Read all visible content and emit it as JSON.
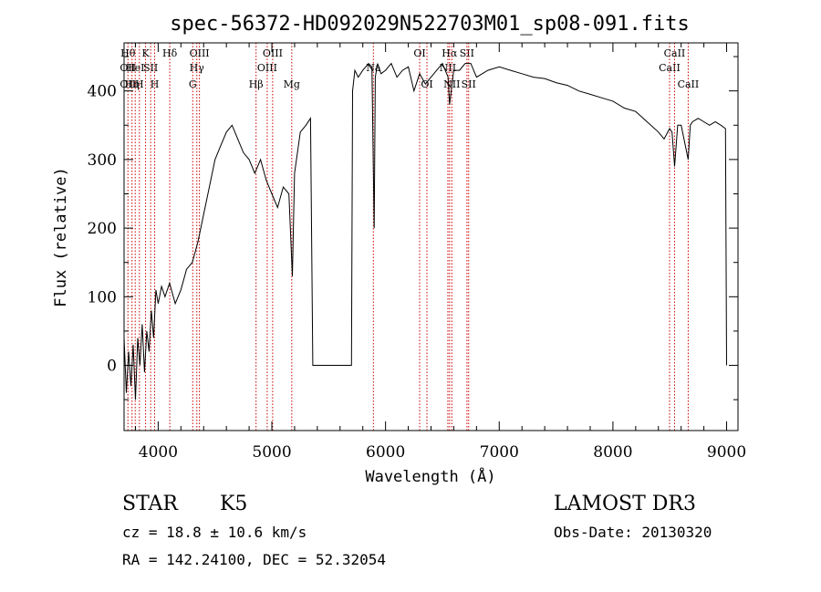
{
  "chart_data": {
    "type": "line",
    "title": "spec-56372-HD092029N522703M01_sp08-091.fits",
    "xlabel": "Wavelength (Å)",
    "ylabel": "Flux (relative)",
    "xlim": [
      3700,
      9100
    ],
    "ylim": [
      -95,
      470
    ],
    "xticks": [
      4000,
      5000,
      6000,
      7000,
      8000,
      9000
    ],
    "yticks": [
      0,
      100,
      200,
      300,
      400
    ],
    "line_color": "#000000",
    "marker_color": "#cc0000",
    "series": [
      {
        "x": [
          3700,
          3720,
          3740,
          3760,
          3780,
          3800,
          3820,
          3840,
          3860,
          3880,
          3900,
          3920,
          3940,
          3960,
          3980,
          4000,
          4030,
          4060,
          4100,
          4150,
          4200,
          4250,
          4300,
          4350,
          4400,
          4450,
          4500,
          4550,
          4600,
          4650,
          4700,
          4750,
          4800,
          4850,
          4900,
          4950,
          5000,
          5050,
          5100,
          5150,
          5180,
          5200,
          5250,
          5300,
          5340,
          5360,
          5370,
          5700,
          5710,
          5730,
          5760,
          5800,
          5850,
          5880,
          5900,
          5910,
          5930,
          5960,
          6000,
          6050,
          6100,
          6150,
          6200,
          6250,
          6300,
          6350,
          6400,
          6450,
          6500,
          6550,
          6563,
          6600,
          6650,
          6700,
          6750,
          6800,
          6900,
          7000,
          7100,
          7200,
          7300,
          7400,
          7500,
          7600,
          7700,
          7800,
          7900,
          8000,
          8100,
          8200,
          8300,
          8400,
          8450,
          8498,
          8520,
          8542,
          8570,
          8600,
          8662,
          8680,
          8700,
          8750,
          8800,
          8850,
          8900,
          8950,
          8990,
          9000
        ],
        "y": [
          40,
          -40,
          20,
          -30,
          30,
          -50,
          40,
          0,
          60,
          -10,
          50,
          20,
          80,
          40,
          110,
          90,
          115,
          100,
          120,
          90,
          110,
          140,
          150,
          180,
          220,
          260,
          300,
          320,
          340,
          350,
          330,
          310,
          300,
          280,
          300,
          270,
          250,
          230,
          260,
          250,
          130,
          280,
          340,
          350,
          360,
          0,
          0,
          0,
          400,
          430,
          420,
          430,
          440,
          435,
          200,
          420,
          440,
          425,
          430,
          440,
          420,
          430,
          435,
          400,
          425,
          410,
          420,
          430,
          440,
          420,
          380,
          430,
          430,
          440,
          440,
          420,
          430,
          435,
          430,
          425,
          420,
          418,
          412,
          408,
          400,
          395,
          390,
          385,
          375,
          370,
          355,
          340,
          330,
          345,
          340,
          290,
          350,
          350,
          300,
          350,
          355,
          360,
          355,
          350,
          355,
          350,
          345,
          0
        ]
      }
    ],
    "line_markers": [
      {
        "x": 3734,
        "labels": [
          "Hθ",
          "OII",
          "OII"
        ],
        "rows": [
          1,
          2,
          3
        ]
      },
      {
        "x": 3770,
        "labels": [
          "Hη"
        ],
        "rows": [
          3
        ]
      },
      {
        "x": 3798,
        "labels": [
          "HeI"
        ],
        "rows": [
          2
        ]
      },
      {
        "x": 3835,
        "labels": [
          "H"
        ],
        "rows": [
          3
        ]
      },
      {
        "x": 3889,
        "labels": [
          "K"
        ],
        "rows": [
          1
        ]
      },
      {
        "x": 3934,
        "labels": [
          "SII"
        ],
        "rows": [
          2
        ]
      },
      {
        "x": 3969,
        "labels": [
          "H"
        ],
        "rows": [
          3
        ]
      },
      {
        "x": 4102,
        "labels": [
          "Hδ"
        ],
        "rows": [
          1
        ]
      },
      {
        "x": 4304,
        "labels": [
          "G"
        ],
        "rows": [
          3
        ]
      },
      {
        "x": 4340,
        "labels": [
          "Hγ"
        ],
        "rows": [
          2
        ]
      },
      {
        "x": 4363,
        "labels": [
          "OIII"
        ],
        "rows": [
          1
        ]
      },
      {
        "x": 4861,
        "labels": [
          "Hβ"
        ],
        "rows": [
          3
        ]
      },
      {
        "x": 4959,
        "labels": [
          "OIII"
        ],
        "rows": [
          2
        ]
      },
      {
        "x": 5007,
        "labels": [
          "OIII"
        ],
        "rows": [
          1
        ]
      },
      {
        "x": 5175,
        "labels": [
          "Mg"
        ],
        "rows": [
          3
        ]
      },
      {
        "x": 5893,
        "labels": [
          "Na"
        ],
        "rows": [
          2
        ]
      },
      {
        "x": 6300,
        "labels": [
          "OI"
        ],
        "rows": [
          1
        ]
      },
      {
        "x": 6364,
        "labels": [
          "OI"
        ],
        "rows": [
          3
        ]
      },
      {
        "x": 6548,
        "labels": [
          "NII"
        ],
        "rows": [
          2
        ]
      },
      {
        "x": 6563,
        "labels": [
          "Hα"
        ],
        "rows": [
          1
        ]
      },
      {
        "x": 6583,
        "labels": [
          "NII"
        ],
        "rows": [
          3
        ]
      },
      {
        "x": 6716,
        "labels": [
          "SII"
        ],
        "rows": [
          1
        ]
      },
      {
        "x": 6731,
        "labels": [
          "SII"
        ],
        "rows": [
          3
        ]
      },
      {
        "x": 8498,
        "labels": [
          "CaII"
        ],
        "rows": [
          2
        ]
      },
      {
        "x": 8542,
        "labels": [
          "CaII"
        ],
        "rows": [
          1
        ]
      },
      {
        "x": 8662,
        "labels": [
          "CaII"
        ],
        "rows": [
          3
        ]
      }
    ]
  },
  "info": {
    "object_class": "STAR",
    "subclass": "K5",
    "redshift": "cz = 18.8 ± 10.6 km/s",
    "coords": "RA = 142.24100, DEC =  52.32054",
    "survey": "LAMOST DR3",
    "obs_date": "Obs-Date: 20130320"
  }
}
